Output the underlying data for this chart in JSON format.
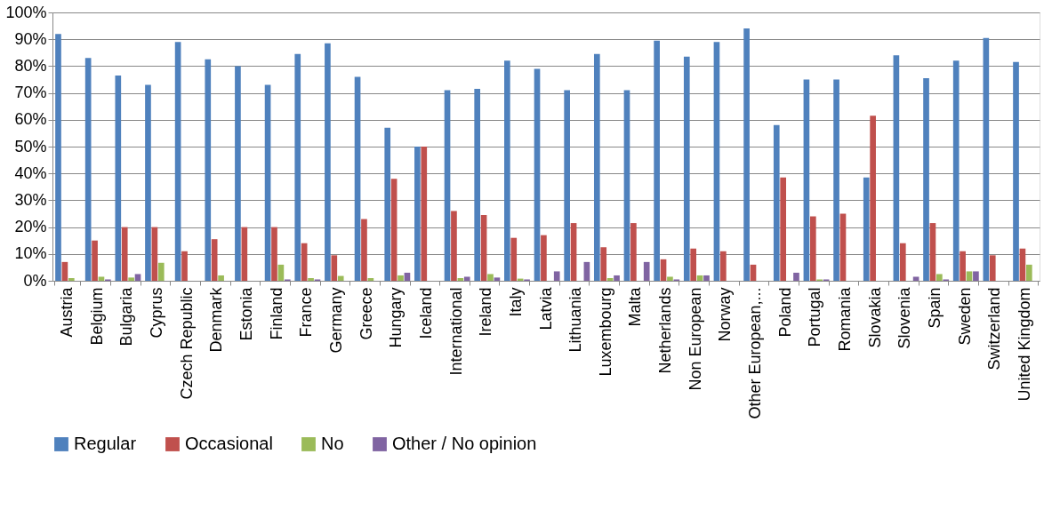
{
  "chart_data": {
    "type": "bar",
    "categories": [
      "Austria",
      "Belgium",
      "Bulgaria",
      "Cyprus",
      "Czech Republic",
      "Denmark",
      "Estonia",
      "Finland",
      "France",
      "Germany",
      "Greece",
      "Hungary",
      "Iceland",
      "International",
      "Ireland",
      "Italy",
      "Latvia",
      "Lithuania",
      "Luxembourg",
      "Malta",
      "Netherlands",
      "Non European",
      "Norway",
      "Other European,...",
      "Poland",
      "Portugal",
      "Romania",
      "Slovakia",
      "Slovenia",
      "Spain",
      "Sweden",
      "Switzerland",
      "United Kingdom"
    ],
    "series": [
      {
        "name": "Regular",
        "color": "#4f81bd",
        "values": [
          92,
          83,
          76.5,
          73,
          89,
          82.5,
          80,
          73,
          84.5,
          88.5,
          76,
          57,
          50,
          71,
          71.5,
          82,
          79,
          71,
          84.5,
          71,
          89.5,
          83.5,
          89,
          94,
          58,
          75,
          75,
          38.5,
          84,
          75.5,
          82,
          90.5,
          81.5
        ]
      },
      {
        "name": "Occasional",
        "color": "#c0504d",
        "values": [
          7,
          15,
          20,
          20,
          11,
          15.5,
          20,
          20,
          14,
          9.5,
          23,
          38,
          50,
          26,
          24.5,
          16,
          17,
          21.5,
          12.5,
          21.5,
          8,
          12,
          11,
          6,
          38.5,
          24,
          25,
          61.5,
          14,
          21.5,
          11,
          9.5,
          12
        ]
      },
      {
        "name": "No",
        "color": "#9bbb59",
        "values": [
          1,
          1.5,
          1.2,
          6.7,
          0,
          2,
          0,
          6,
          1,
          1.8,
          1,
          2,
          0,
          1,
          2.5,
          0.8,
          0,
          0,
          1,
          0,
          1.5,
          2,
          0,
          0,
          0,
          0.5,
          0,
          0,
          0,
          2.5,
          3.5,
          0,
          6
        ]
      },
      {
        "name": "Other / No opinion",
        "color": "#8064a2",
        "values": [
          0,
          0.5,
          2.5,
          0,
          0,
          0,
          0,
          0.5,
          0.5,
          0,
          0,
          3,
          0,
          1.5,
          1.2,
          0.5,
          3.5,
          7,
          2,
          7,
          0.5,
          2,
          0,
          0,
          3,
          0.5,
          0,
          0,
          1.5,
          0.5,
          3.5,
          0,
          0
        ]
      }
    ],
    "ylim": [
      0,
      100
    ],
    "yticks": [
      {
        "value": 0,
        "label": "0%"
      },
      {
        "value": 10,
        "label": "10%"
      },
      {
        "value": 20,
        "label": "20%"
      },
      {
        "value": 30,
        "label": "30%"
      },
      {
        "value": 40,
        "label": "40%"
      },
      {
        "value": 50,
        "label": "50%"
      },
      {
        "value": 60,
        "label": "60%"
      },
      {
        "value": 70,
        "label": "70%"
      },
      {
        "value": 80,
        "label": "80%"
      },
      {
        "value": 90,
        "label": "90%"
      },
      {
        "value": 100,
        "label": "100%"
      }
    ],
    "grid": "y",
    "legend": "bottom"
  }
}
